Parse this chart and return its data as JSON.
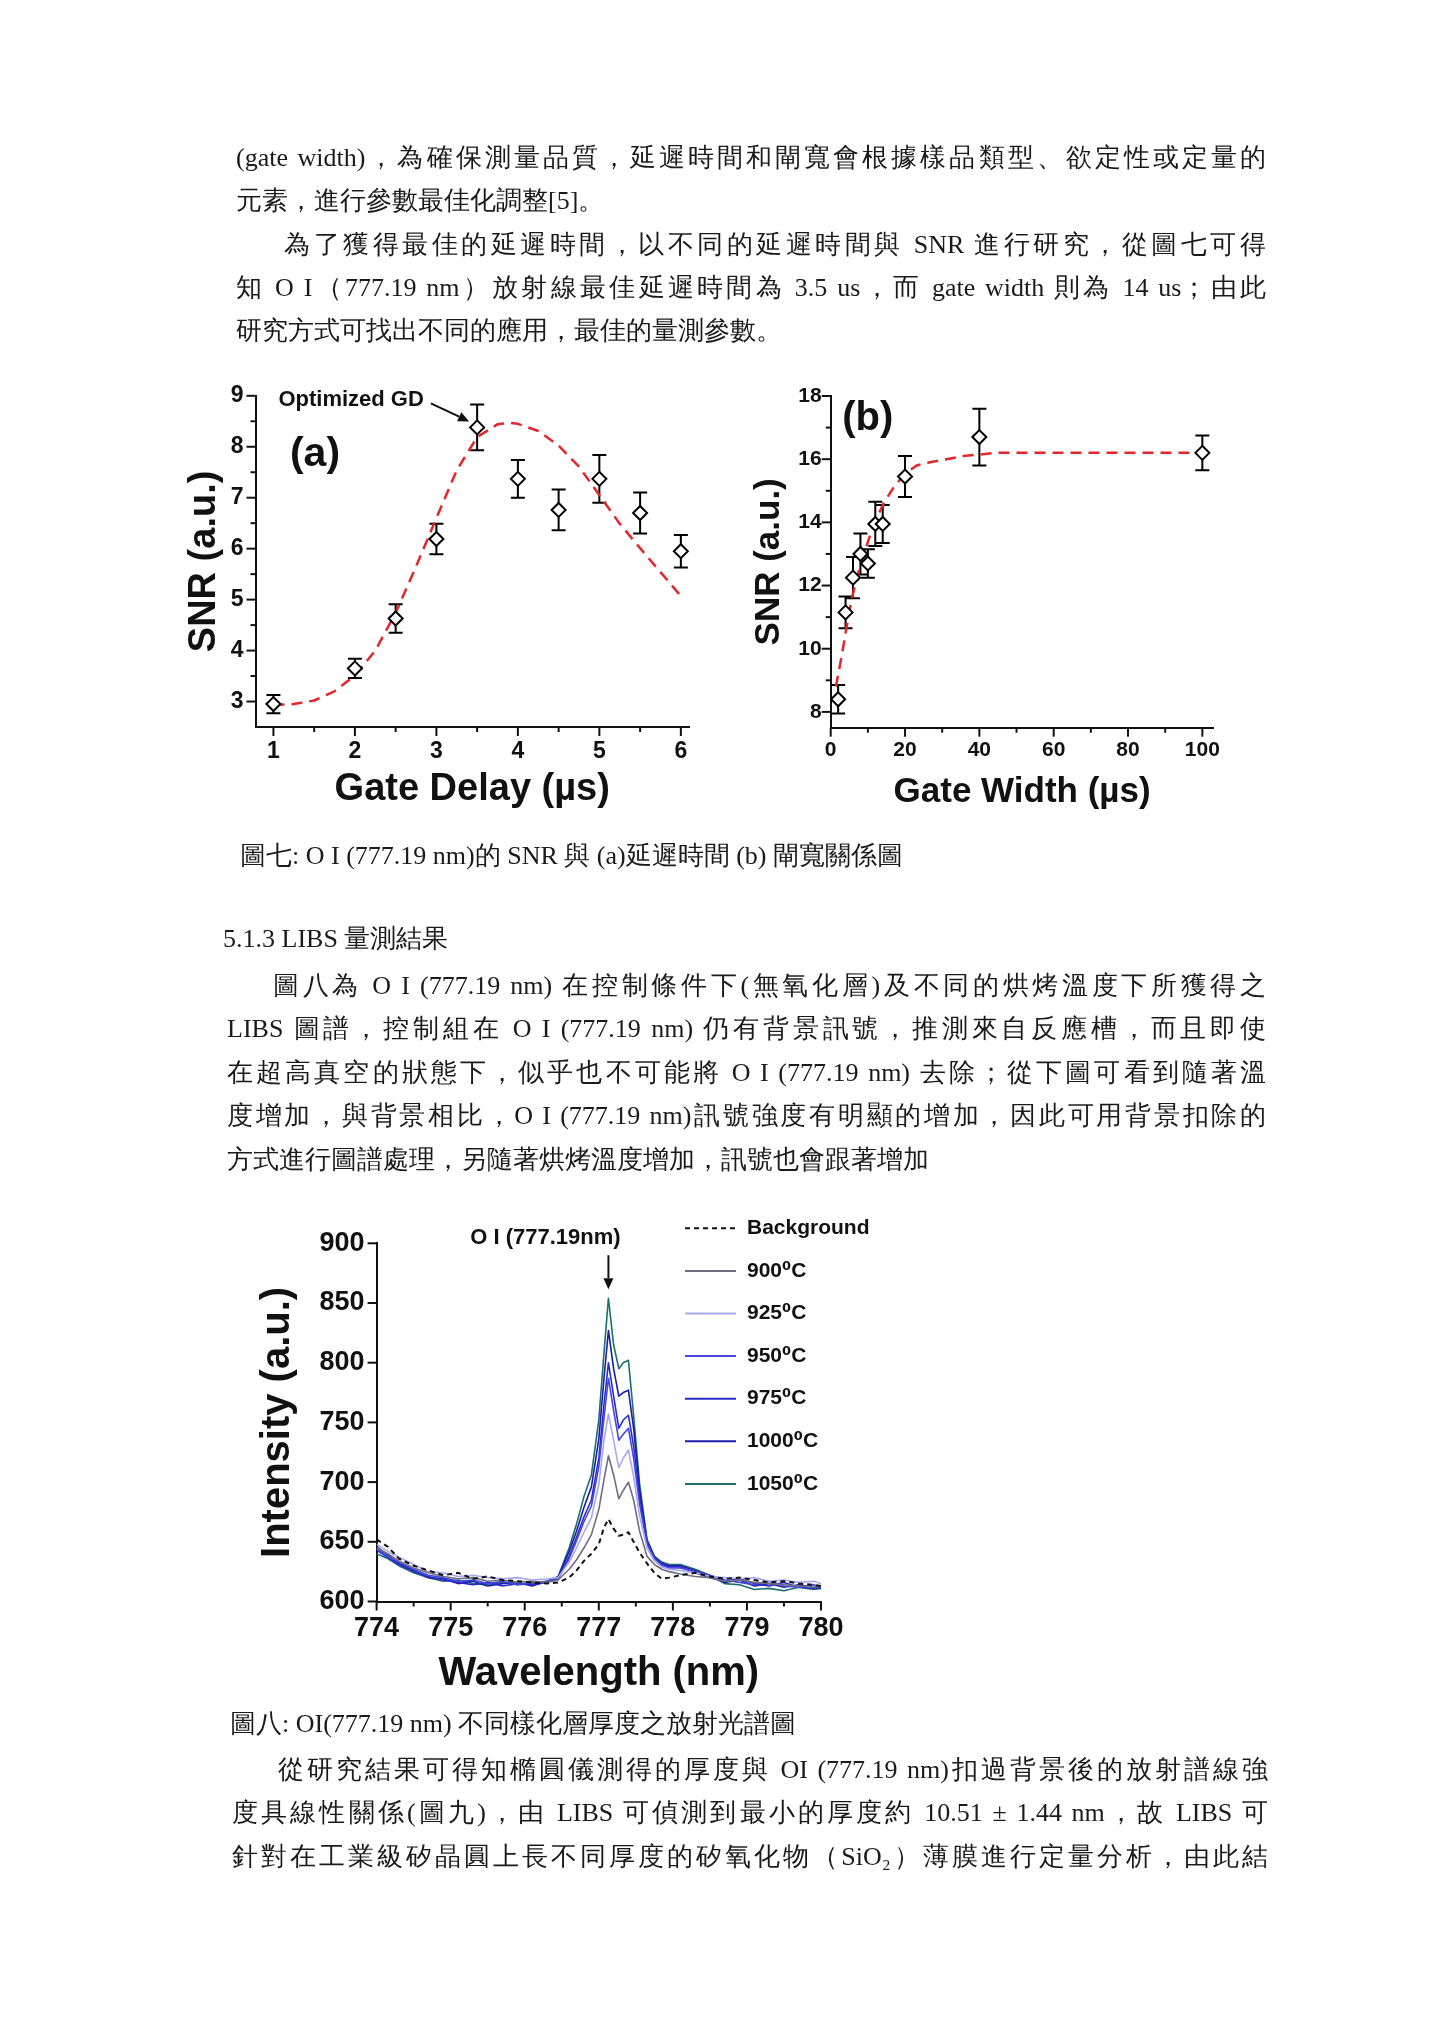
{
  "chart_data": [
    {
      "type": "other",
      "annotations": [
        "(gate width)，為確保測量品質，延遲時間和閘寬會根據樣品類型、欲定性或定量的",
        "元素，進行參數最佳化調整[5]。"
      ]
    },
    {
      "type": "other",
      "annotations": [
        "為了獲得最佳的延遲時間，以不同的延遲時間與 SNR 進行研究，從圖七可得",
        "知 O I（777.19 nm）放射線最佳延遲時間為 3.5 us，而 gate width 則為 14 us；由此",
        "研究方式可找出不同的應用，最佳的量測參數。"
      ]
    },
    {
      "type": "scatter",
      "title": "(a)",
      "xlabel": "Gate Delay (µs)",
      "ylabel": "SNR (a.u.)",
      "xlim": [
        0.78,
        6.1
      ],
      "xticks": [
        1,
        {
          "value": 1.5,
          "label": null
        },
        2,
        {
          "value": 2.5,
          "label": null
        },
        3,
        {
          "value": 3.5,
          "label": null
        },
        4,
        {
          "value": 4.5,
          "label": null
        },
        5,
        {
          "value": 5.5,
          "label": null
        },
        6
      ],
      "ylim": [
        2.5,
        9
      ],
      "yticks": [
        3,
        {
          "value": 3.5,
          "label": null
        },
        4,
        {
          "value": 4.5,
          "label": null
        },
        5,
        {
          "value": 5.5,
          "label": null
        },
        6,
        {
          "value": 6.5,
          "label": null
        },
        7,
        {
          "value": 7.5,
          "label": null
        },
        8,
        {
          "value": 8.5,
          "label": null
        },
        9
      ],
      "series": [
        {
          "type": "scatter",
          "marker": "diamond",
          "color": "#000000",
          "x": [
            1,
            2,
            2.5,
            3,
            3.5,
            4,
            4.5,
            5,
            5.5,
            6
          ],
          "values": [
            2.95,
            3.65,
            4.63,
            6.19,
            8.38,
            7.37,
            6.76,
            7.37,
            6.7,
            5.95
          ],
          "errors": [
            0.18,
            0.19,
            0.28,
            0.3,
            0.45,
            0.37,
            0.4,
            0.47,
            0.4,
            0.32
          ]
        },
        {
          "type": "line",
          "line_style": "dashed",
          "color": "#e3262b",
          "x": [
            1,
            1.25,
            1.5,
            1.75,
            2,
            2.25,
            2.5,
            2.75,
            3,
            3.25,
            3.5,
            3.75,
            3.9,
            4,
            4.25,
            4.5,
            4.75,
            5,
            5.25,
            5.5,
            5.75,
            6
          ],
          "values": [
            2.93,
            2.95,
            3.02,
            3.2,
            3.51,
            4.0,
            4.74,
            5.65,
            6.6,
            7.54,
            8.19,
            8.44,
            8.47,
            8.45,
            8.31,
            8.02,
            7.61,
            7.05,
            6.49,
            6.01,
            5.54,
            5.07
          ]
        }
      ],
      "annotations": [
        {
          "text": "Optimized GD",
          "x": 3.5,
          "y": 8.38
        }
      ]
    },
    {
      "type": "scatter",
      "title": "(b)",
      "xlabel": "Gate Width (µs)",
      "ylabel": "SNR (a.u.)",
      "xlim": [
        0,
        103
      ],
      "xticks": [
        0,
        {
          "value": 10,
          "label": null
        },
        20,
        {
          "value": 30,
          "label": null
        },
        40,
        {
          "value": 50,
          "label": null
        },
        60,
        {
          "value": 70,
          "label": null
        },
        80,
        {
          "value": 90,
          "label": null
        },
        100
      ],
      "ylim": [
        7.5,
        18
      ],
      "yticks": [
        8,
        {
          "value": 9,
          "label": null
        },
        10,
        {
          "value": 11,
          "label": null
        },
        12,
        {
          "value": 13,
          "label": null
        },
        14,
        {
          "value": 15,
          "label": null
        },
        16,
        {
          "value": 17,
          "label": null
        },
        18
      ],
      "series": [
        {
          "type": "scatter",
          "marker": "diamond",
          "color": "#000000",
          "x": [
            2,
            4,
            6,
            8,
            10,
            12,
            14,
            20,
            40,
            100
          ],
          "values": [
            8.4,
            11.15,
            12.25,
            13.0,
            12.7,
            13.95,
            13.95,
            15.45,
            16.7,
            16.2
          ],
          "errors": [
            0.45,
            0.5,
            0.65,
            0.65,
            0.45,
            0.7,
            0.6,
            0.65,
            0.9,
            0.55
          ]
        },
        {
          "type": "line",
          "line_style": "dashed",
          "color": "#e3262b",
          "x": [
            1.4,
            3,
            4.3,
            5.7,
            7.4,
            9.2,
            11.5,
            14.2,
            16.9,
            19.6,
            23.1,
            26.7,
            31.2,
            35.7,
            44.7,
            62.6,
            80,
            100
          ],
          "values": [
            8.8,
            9.8,
            10.7,
            11.6,
            12.4,
            13.1,
            13.9,
            14.6,
            15.1,
            15.5,
            15.8,
            15.9,
            16.0,
            16.1,
            16.2,
            16.2,
            16.2,
            16.2
          ]
        }
      ]
    },
    {
      "type": "other",
      "annotations": [
        "圖七: O I (777.19 nm)的 SNR 與 (a)延遲時間 (b) 閘寬關係圖"
      ]
    },
    {
      "type": "other",
      "title": "5.1.3 LIBS 量測結果",
      "annotations": [
        "圖八為 O I (777.19 nm) 在控制條件下(無氧化層)及不同的烘烤溫度下所獲得之",
        "LIBS 圖譜，控制組在 O I (777.19 nm) 仍有背景訊號，推測來自反應槽，而且即使",
        "在超高真空的狀態下，似乎也不可能將 O I (777.19 nm) 去除；從下圖可看到隨著溫",
        "度增加，與背景相比，O I (777.19 nm)訊號強度有明顯的增加，因此可用背景扣除的",
        "方式進行圖譜處理，另隨著烘烤溫度增加，訊號也會跟著增加"
      ]
    },
    {
      "type": "line",
      "xlabel": "Wavelength (nm)",
      "ylabel": "Intensity (a.u.)",
      "xlim": [
        774,
        780
      ],
      "xticks": [
        774,
        {
          "value": 774.5,
          "label": null
        },
        775,
        {
          "value": 775.5,
          "label": null
        },
        776,
        {
          "value": 776.5,
          "label": null
        },
        777,
        {
          "value": 777.5,
          "label": null
        },
        778,
        {
          "value": 778.5,
          "label": null
        },
        779,
        {
          "value": 779.5,
          "label": null
        },
        780
      ],
      "ylim": [
        600,
        900
      ],
      "yticks": [
        600,
        650,
        700,
        750,
        800,
        850,
        900
      ],
      "legend": "top right",
      "x": [
        774,
        774.15,
        774.3,
        774.5,
        774.7,
        774.9,
        775.1,
        775.3,
        775.5,
        775.7,
        775.9,
        776.1,
        776.3,
        776.45,
        776.6,
        776.7,
        776.8,
        776.9,
        777.0,
        777.07,
        777.13,
        777.2,
        777.27,
        777.33,
        777.4,
        777.47,
        777.55,
        777.65,
        777.75,
        777.85,
        777.95,
        778.1,
        778.3,
        778.5,
        778.7,
        778.9,
        779.1,
        779.3,
        779.5,
        779.7,
        779.9,
        780
      ],
      "series": [
        {
          "name": "Background",
          "color": "#111111",
          "line_style": "dashed",
          "values": [
            652,
            646,
            636,
            630,
            626,
            622,
            624,
            619,
            621,
            618,
            617,
            616,
            615,
            616,
            620,
            626,
            634,
            640,
            648,
            662,
            669,
            661,
            655,
            656,
            658,
            650,
            641,
            632,
            624,
            619,
            620,
            622,
            624,
            621,
            619,
            620,
            618,
            616,
            617,
            615,
            614,
            613
          ]
        },
        {
          "name": "900⁰C",
          "color": "#6e6e80",
          "values": [
            645,
            640,
            634,
            628,
            624,
            621,
            619,
            620,
            617,
            618,
            616,
            617,
            616,
            618,
            627,
            635,
            645,
            656,
            677,
            702,
            722,
            706,
            686,
            693,
            700,
            685,
            659,
            638,
            631,
            627,
            625,
            623,
            621,
            620,
            617,
            618,
            616,
            615,
            614,
            613,
            612,
            613
          ]
        },
        {
          "name": "925⁰C",
          "color": "#a9a9ee",
          "values": [
            648,
            642,
            637,
            631,
            625,
            624,
            621,
            622,
            620,
            619,
            620,
            618,
            619,
            620,
            633,
            645,
            658,
            670,
            698,
            735,
            757,
            735,
            712,
            720,
            727,
            705,
            672,
            645,
            634,
            629,
            627,
            626,
            624,
            621,
            620,
            619,
            620,
            617,
            618,
            616,
            617,
            615
          ]
        },
        {
          "name": "950⁰C",
          "color": "#4646e0",
          "values": [
            644,
            638,
            633,
            627,
            622,
            620,
            617,
            618,
            615,
            617,
            614,
            616,
            617,
            619,
            636,
            651,
            667,
            680,
            713,
            754,
            787,
            760,
            735,
            740,
            745,
            720,
            682,
            648,
            636,
            630,
            628,
            628,
            625,
            622,
            618,
            616,
            614,
            617,
            613,
            612,
            614,
            612
          ]
        },
        {
          "name": "975⁰C",
          "color": "#2a2acc",
          "values": [
            643,
            637,
            631,
            625,
            621,
            618,
            616,
            614,
            616,
            613,
            615,
            614,
            616,
            619,
            638,
            654,
            671,
            685,
            720,
            765,
            800,
            772,
            745,
            752,
            756,
            730,
            688,
            650,
            637,
            631,
            629,
            629,
            624,
            620,
            617,
            619,
            615,
            613,
            616,
            612,
            611,
            613
          ]
        },
        {
          "name": "1000⁰C",
          "color": "#1c1ca4",
          "values": [
            646,
            639,
            632,
            626,
            620,
            619,
            615,
            617,
            613,
            615,
            616,
            613,
            617,
            620,
            642,
            659,
            679,
            696,
            736,
            787,
            827,
            795,
            772,
            775,
            777,
            745,
            694,
            651,
            637,
            632,
            630,
            630,
            626,
            621,
            616,
            618,
            613,
            615,
            612,
            614,
            612,
            611
          ]
        },
        {
          "name": "1050⁰C",
          "color": "#1d6e6e",
          "values": [
            640,
            636,
            630,
            624,
            620,
            617,
            618,
            615,
            614,
            616,
            614,
            615,
            617,
            621,
            645,
            665,
            688,
            706,
            752,
            808,
            854,
            815,
            795,
            800,
            802,
            756,
            699,
            652,
            638,
            633,
            631,
            631,
            627,
            622,
            615,
            614,
            610,
            611,
            609,
            612,
            610,
            611
          ]
        }
      ],
      "annotations": [
        {
          "text": "O I (777.19nm)",
          "x": 777.13,
          "y": 854
        }
      ]
    },
    {
      "type": "other",
      "annotations": [
        "圖八: OI(777.19 nm) 不同樣化層厚度之放射光譜圖"
      ]
    },
    {
      "type": "other",
      "annotations": [
        "從研究結果可得知橢圓儀測得的厚度與 OI (777.19 nm)扣過背景後的放射譜線強",
        "度具線性關係(圖九)，由 LIBS 可偵測到最小的厚度約 10.51 ± 1.44 nm，故 LIBS 可",
        "針對在工業級矽晶圓上長不同厚度的矽氧化物（SiO₂）薄膜進行定量分析，由此結"
      ]
    }
  ]
}
